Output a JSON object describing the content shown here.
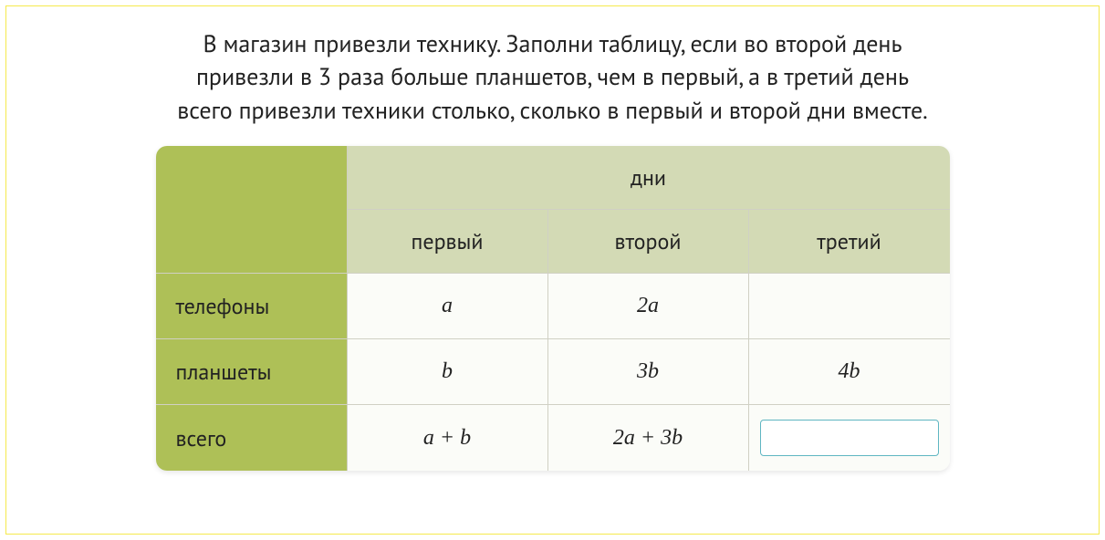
{
  "problem": {
    "line1": "В магазин привезли технику. Заполни таблицу, если во второй день",
    "line2": "привезли в 3 раза больше планшетов, чем в первый, а в третий день",
    "line3": "всего привезли техники столько, сколько в первый и второй дни вместе."
  },
  "table": {
    "top_header": "дни",
    "sub_headers": [
      "первый",
      "второй",
      "третий"
    ],
    "row_headers": [
      "телефоны",
      "планшеты",
      "всего"
    ],
    "cells": {
      "r0c0": "a",
      "r0c1": "2a",
      "r0c2": "",
      "r1c0": "b",
      "r1c1": "3b",
      "r1c2": "4b",
      "r2c0": "a + b",
      "r2c1": "2a + 3b"
    },
    "input_value": "",
    "colors": {
      "corner_bg": "#aec057",
      "header_bg": "#d3dab5",
      "row_header_bg": "#aec057",
      "cell_bg": "#fbfcf8",
      "border": "#d0d0c4",
      "input_border": "#5fb6c2",
      "page_border": "#f5e94d",
      "text": "#222222"
    }
  }
}
